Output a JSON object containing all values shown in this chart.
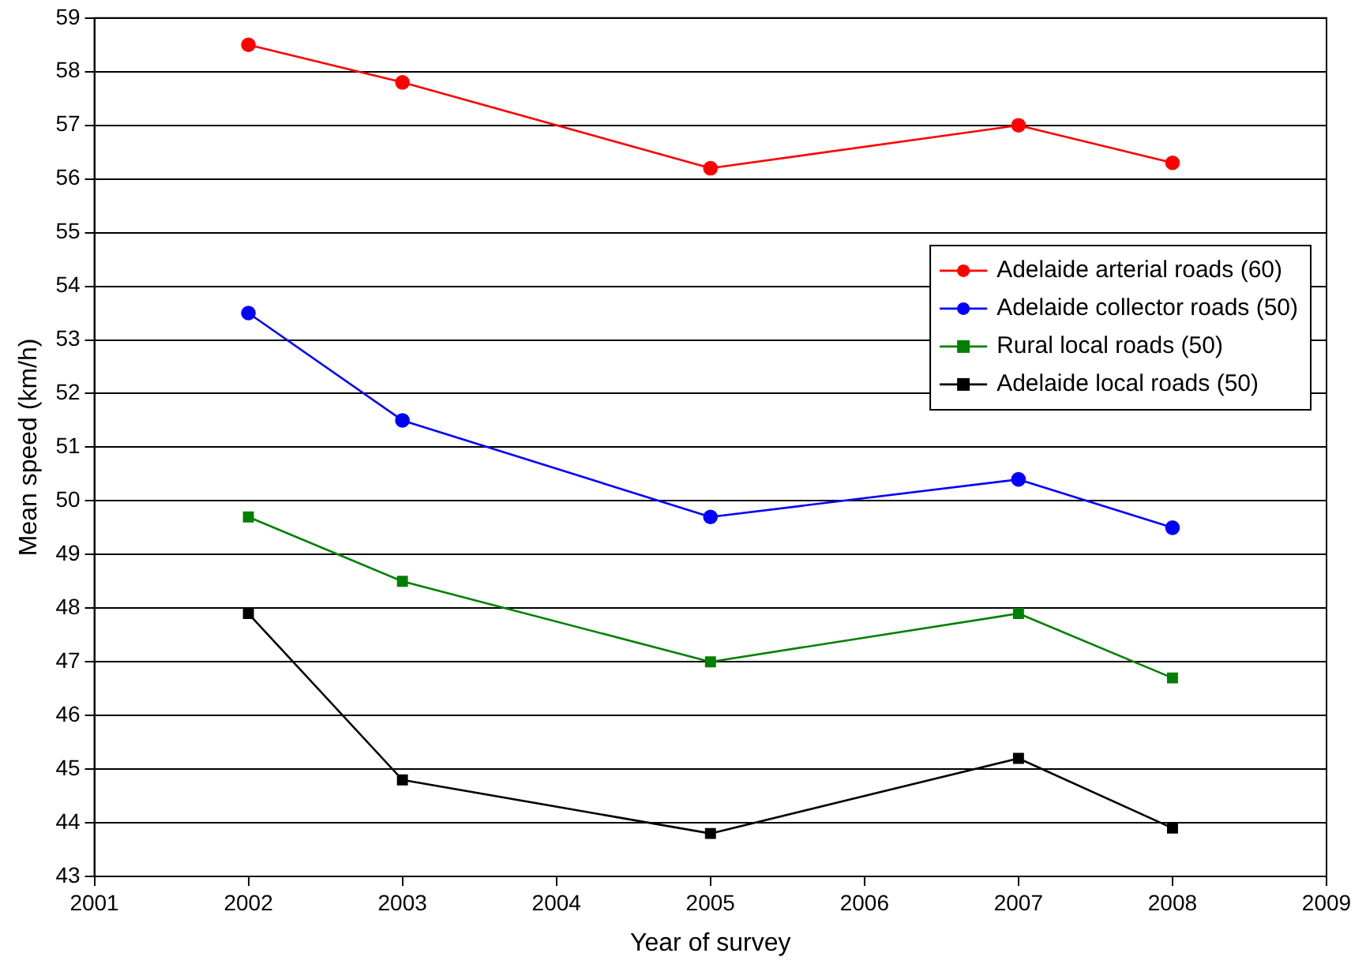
{
  "chart_data": {
    "type": "line",
    "xlabel": "Year of survey",
    "ylabel": "Mean speed (km/h)",
    "x": [
      2002,
      2003,
      2005,
      2007,
      2008
    ],
    "series": [
      {
        "name": "Adelaide arterial roads (60)",
        "color": "#ff0000",
        "marker": "circle",
        "values": [
          58.5,
          57.8,
          56.2,
          57.0,
          56.3
        ]
      },
      {
        "name": "Adelaide collector roads (50)",
        "color": "#0000ff",
        "marker": "circle",
        "values": [
          53.5,
          51.5,
          49.7,
          50.4,
          49.5
        ]
      },
      {
        "name": "Rural local roads (50)",
        "color": "#008000",
        "marker": "square",
        "values": [
          49.7,
          48.5,
          47.0,
          47.9,
          46.7
        ]
      },
      {
        "name": "Adelaide local roads (50)",
        "color": "#000000",
        "marker": "square",
        "values": [
          47.9,
          44.8,
          43.8,
          45.2,
          43.9
        ]
      }
    ],
    "xlim": [
      2001,
      2009
    ],
    "xticks": [
      2001,
      2002,
      2003,
      2004,
      2005,
      2006,
      2007,
      2008,
      2009
    ],
    "ylim": [
      43,
      59
    ],
    "yticks": [
      43,
      44,
      45,
      46,
      47,
      48,
      49,
      50,
      51,
      52,
      53,
      54,
      55,
      56,
      57,
      58,
      59
    ],
    "grid": "y",
    "legend": "top right",
    "line_style": "solid"
  }
}
